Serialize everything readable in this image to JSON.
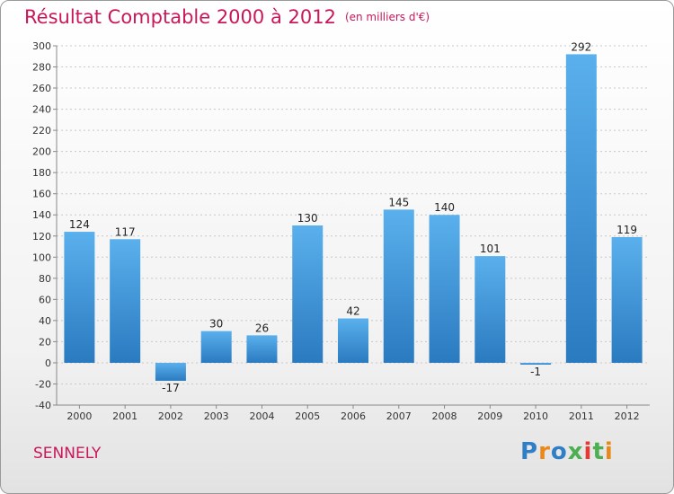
{
  "title": "Résultat Comptable 2000 à 2012",
  "subtitle": "(en milliers d'€)",
  "commune": "SENNELY",
  "logo": {
    "text": "Proxiti",
    "letter_colors": [
      "#2f7fc7",
      "#e8891a",
      "#2f7fc7",
      "#4caf50",
      "#e53935",
      "#4caf50",
      "#e8891a"
    ]
  },
  "colors": {
    "title": "#c8185a",
    "bar_light": "#5ab0ec",
    "bar_dark": "#2a7ac0",
    "axis": "#888888",
    "grid": "#c8c8c8"
  },
  "chart_data": {
    "type": "bar",
    "categories": [
      "2000",
      "2001",
      "2002",
      "2003",
      "2004",
      "2005",
      "2006",
      "2007",
      "2008",
      "2009",
      "2010",
      "2011",
      "2012"
    ],
    "values": [
      124,
      117,
      -17,
      30,
      26,
      130,
      42,
      145,
      140,
      101,
      -1,
      292,
      119
    ],
    "value_labels": [
      "124",
      "117",
      "-17",
      "30",
      "26",
      "130",
      "42",
      "145",
      "140",
      "101",
      "-1",
      "292",
      "119"
    ],
    "title": "Résultat Comptable 2000 à 2012",
    "subtitle": "(en milliers d'€)",
    "xlabel": "",
    "ylabel": "",
    "ylim": [
      -40,
      300
    ],
    "yticks": [
      "-40",
      "-20",
      "0",
      "20",
      "40",
      "60",
      "80",
      "100",
      "120",
      "140",
      "160",
      "180",
      "200",
      "220",
      "240",
      "260",
      "280",
      "300"
    ],
    "grid": true,
    "legend": "none"
  }
}
